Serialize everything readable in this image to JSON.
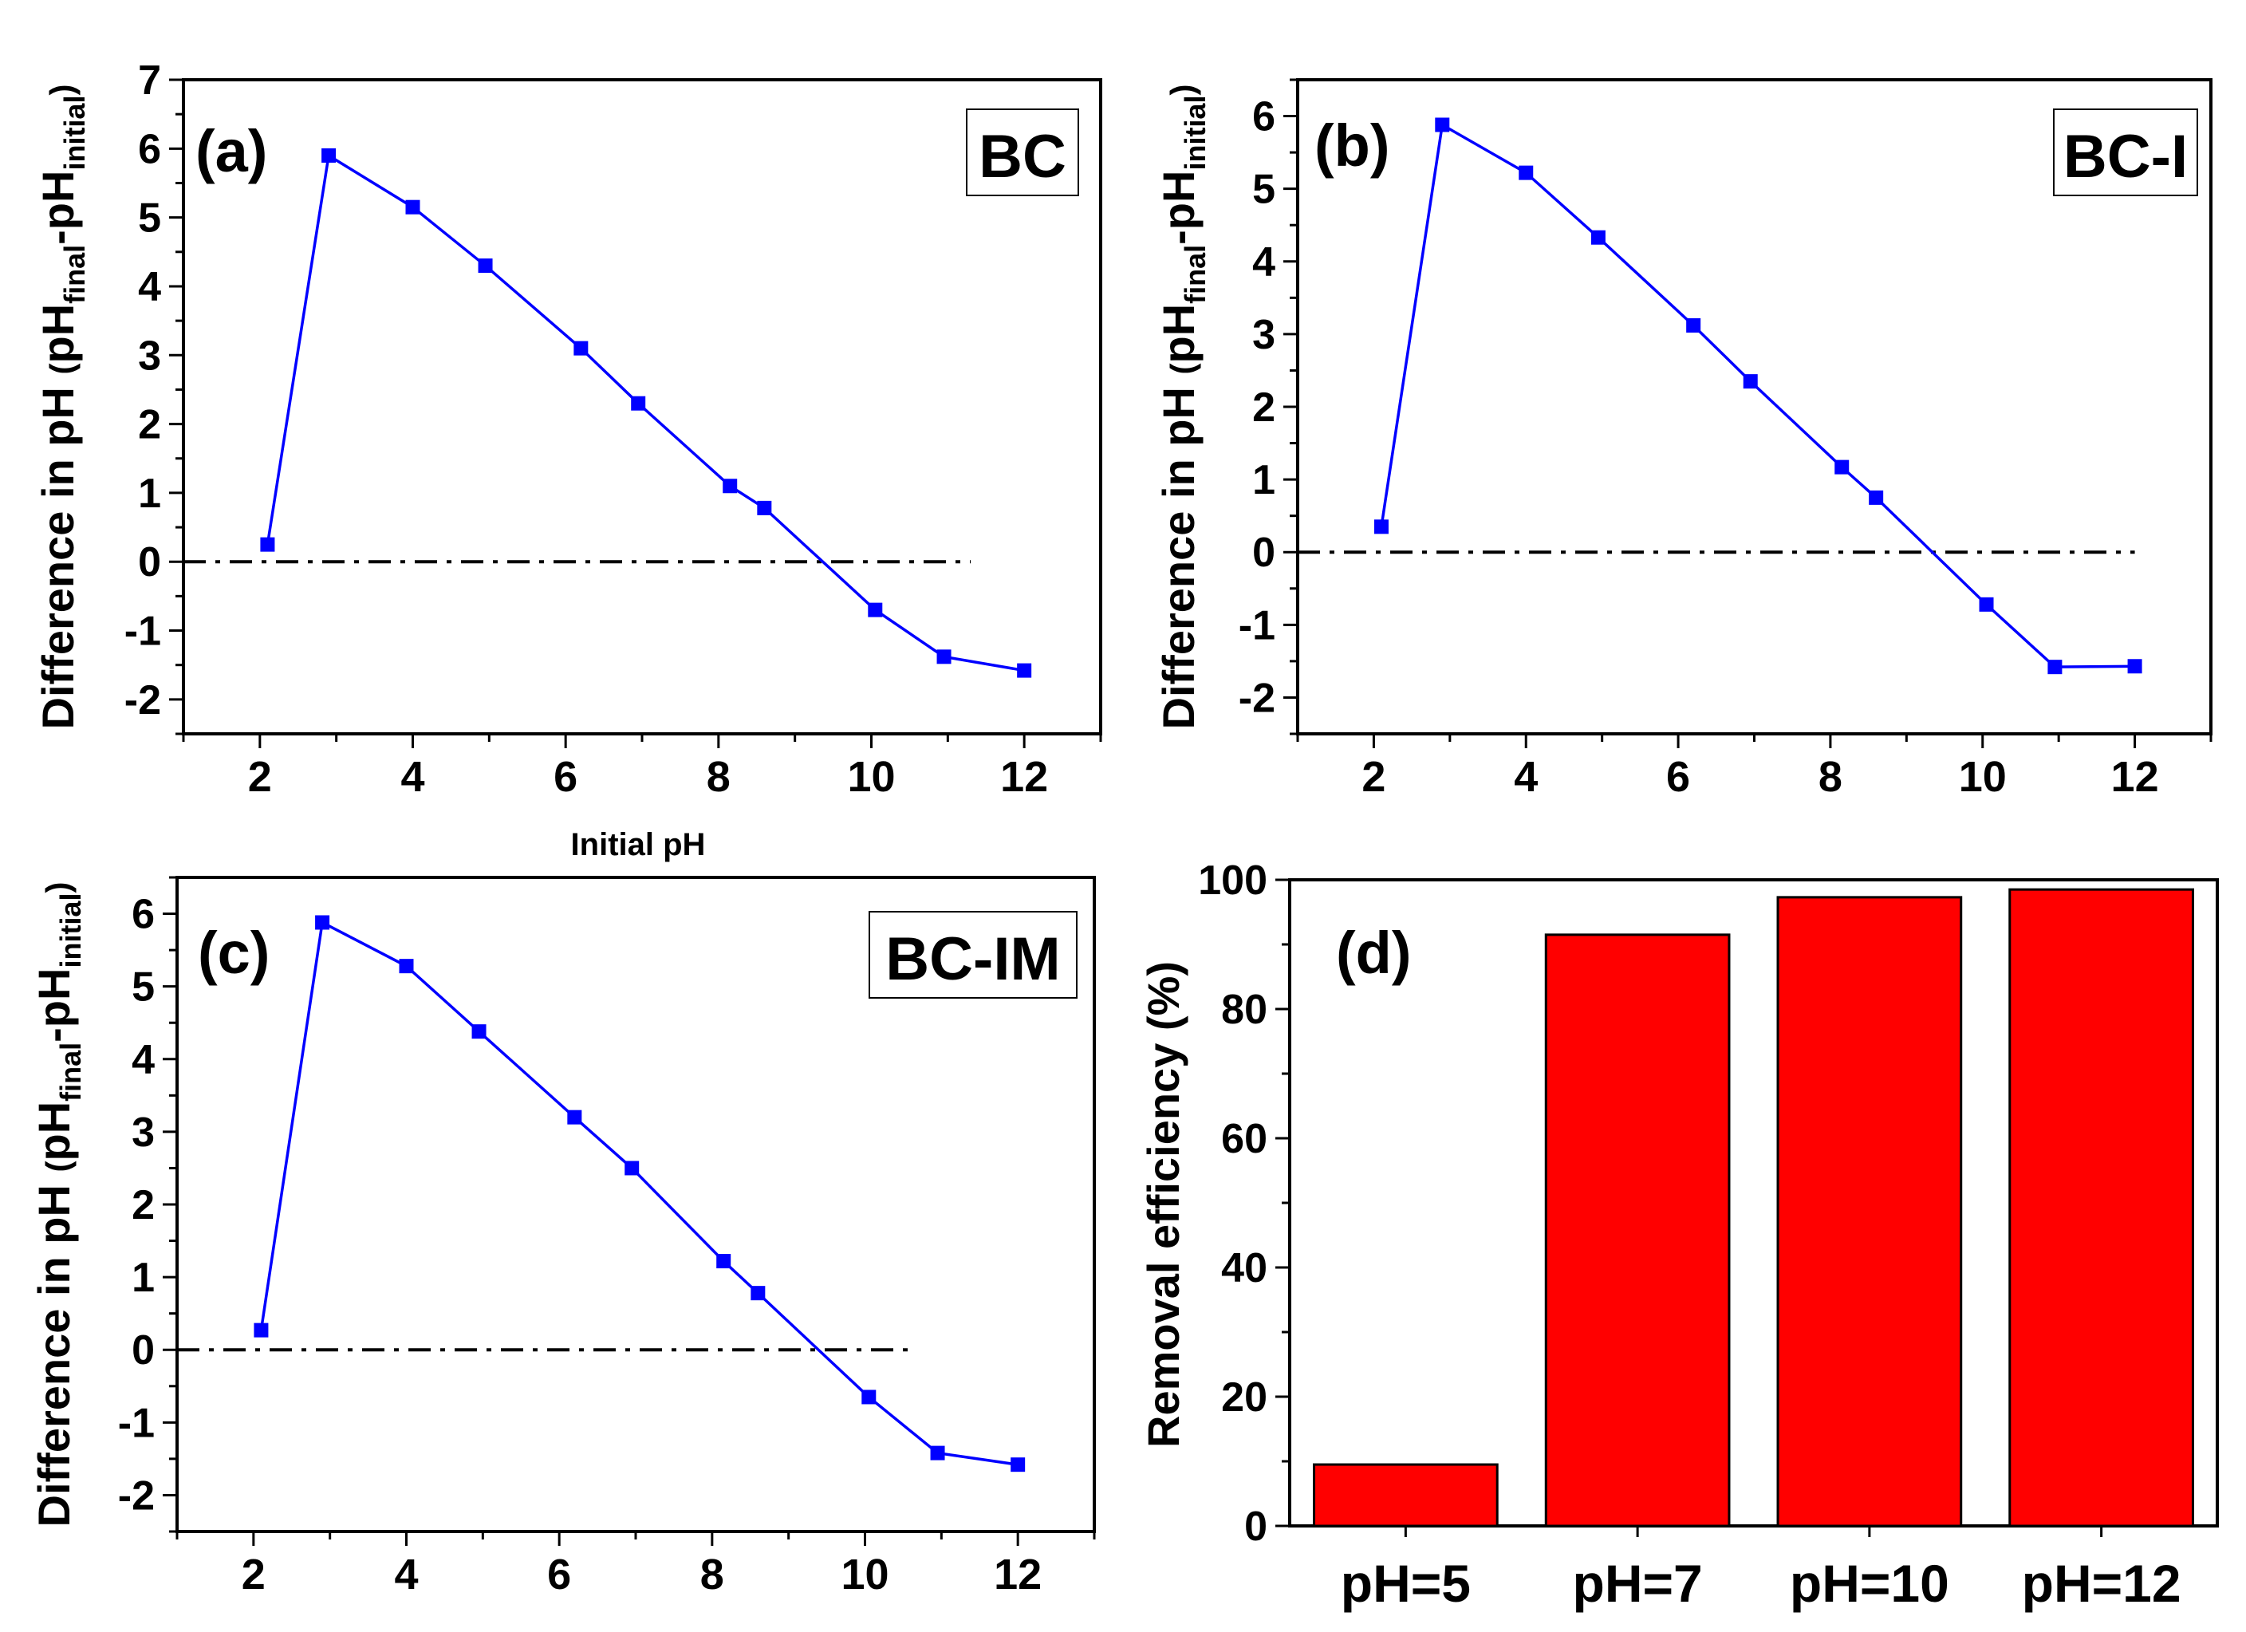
{
  "figure_label_initial_ph": "Initial pH",
  "colors": {
    "line": "#0000ff",
    "bar": "#ff0000",
    "axis": "#000000",
    "zero": "#000000"
  },
  "chart_data": [
    {
      "id": "a",
      "type": "line",
      "panel_label": "(a)",
      "tag": "BC",
      "ylabel_main": "Difference in pH ",
      "ylabel_paren_open": "(",
      "ylabel_ph": "pH",
      "ylabel_sub_final": "final",
      "ylabel_dash": "-pH",
      "ylabel_sub_initial": "initial",
      "ylabel_paren_close": ")",
      "xlabel": "Initial pH",
      "xlim": [
        1,
        13
      ],
      "ylim": [
        -2.5,
        7
      ],
      "xticks": [
        2,
        4,
        6,
        8,
        10,
        12
      ],
      "yticks": [
        -2,
        -1,
        0,
        1,
        2,
        3,
        4,
        5,
        6,
        7
      ],
      "x": [
        2.1,
        2.9,
        4.0,
        4.95,
        6.2,
        6.95,
        8.15,
        8.6,
        10.05,
        10.95,
        12.0
      ],
      "y": [
        0.25,
        5.9,
        5.15,
        4.3,
        3.1,
        2.3,
        1.1,
        0.78,
        -0.7,
        -1.38,
        -1.58
      ],
      "zero_line_x": [
        1,
        11.3
      ]
    },
    {
      "id": "b",
      "type": "line",
      "panel_label": "(b)",
      "tag": "BC-I",
      "ylabel_main": "Difference in pH ",
      "ylabel_paren_open": "(",
      "ylabel_ph": "pH",
      "ylabel_sub_final": "final",
      "ylabel_dash": "-pH",
      "ylabel_sub_initial": "initial",
      "ylabel_paren_close": ")",
      "xlim": [
        1,
        13
      ],
      "ylim": [
        -2.5,
        6.5
      ],
      "xticks": [
        2,
        4,
        6,
        8,
        10,
        12
      ],
      "yticks": [
        -2,
        -1,
        0,
        1,
        2,
        3,
        4,
        5,
        6
      ],
      "x": [
        2.1,
        2.9,
        4.0,
        4.95,
        6.2,
        6.95,
        8.15,
        8.6,
        10.05,
        10.95,
        12.0
      ],
      "y": [
        0.35,
        5.88,
        5.22,
        4.33,
        3.12,
        2.35,
        1.17,
        0.75,
        -0.72,
        -1.58,
        -1.57
      ],
      "zero_line_x": [
        1,
        12.0
      ]
    },
    {
      "id": "c",
      "type": "line",
      "panel_label": "(c)",
      "tag": "BC-IM",
      "ylabel_main": "Difference in pH ",
      "ylabel_paren_open": "(",
      "ylabel_ph": "pH",
      "ylabel_sub_final": "final",
      "ylabel_dash": "-pH",
      "ylabel_sub_initial": "initial",
      "ylabel_paren_close": ")",
      "xlim": [
        1,
        13
      ],
      "ylim": [
        -2.5,
        6.5
      ],
      "xticks": [
        2,
        4,
        6,
        8,
        10,
        12
      ],
      "yticks": [
        -2,
        -1,
        0,
        1,
        2,
        3,
        4,
        5,
        6
      ],
      "x": [
        2.1,
        2.9,
        4.0,
        4.95,
        6.2,
        6.95,
        8.15,
        8.6,
        10.05,
        10.95,
        12.0
      ],
      "y": [
        0.27,
        5.88,
        5.28,
        4.38,
        3.2,
        2.5,
        1.22,
        0.78,
        -0.65,
        -1.42,
        -1.58
      ],
      "zero_line_x": [
        1,
        10.6
      ]
    },
    {
      "id": "d",
      "type": "bar",
      "panel_label": "(d)",
      "ylabel": "Removal efficiency (%)",
      "ylim": [
        0,
        100
      ],
      "yticks": [
        0,
        20,
        40,
        60,
        80,
        100
      ],
      "categories": [
        "pH=5",
        "pH=7",
        "pH=10",
        "pH=12"
      ],
      "values": [
        9.5,
        91.5,
        97.3,
        98.5
      ]
    }
  ]
}
